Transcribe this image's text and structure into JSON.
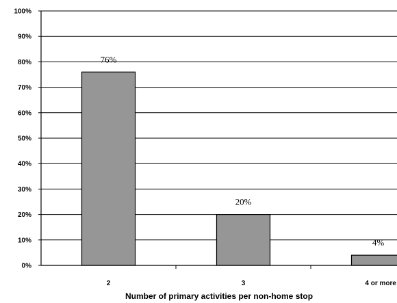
{
  "chart_data": {
    "type": "bar",
    "title": "",
    "xlabel": "Number of primary activities per non-home stop",
    "ylabel": "",
    "ylim": [
      0,
      100
    ],
    "yticks": [
      "0%",
      "10%",
      "20%",
      "30%",
      "40%",
      "50%",
      "60%",
      "70%",
      "80%",
      "90%",
      "100%"
    ],
    "categories": [
      "2",
      "3",
      "4 or more"
    ],
    "values": [
      76,
      20,
      4
    ],
    "data_labels": [
      "76%",
      "20%",
      "4%"
    ],
    "grid": true,
    "legend": "none",
    "colors": {
      "bar": "#969696",
      "bar_border": "#000000",
      "grid": "#000000"
    }
  }
}
